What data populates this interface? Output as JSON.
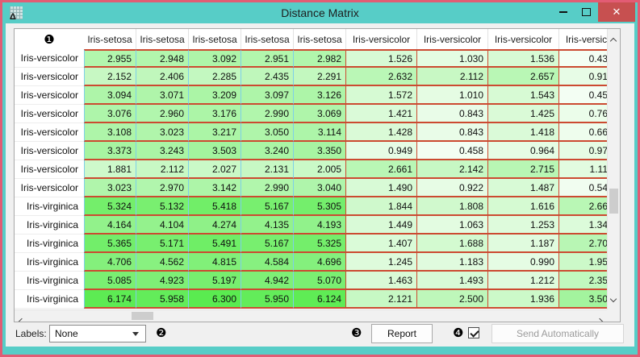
{
  "window": {
    "title": "Distance Matrix",
    "icon_glyph": "Δ",
    "minimize_glyph": "",
    "maximize_glyph": "",
    "close_glyph": "✕",
    "titlebar_color": "#57cdc7",
    "frame_color": "#e25c74",
    "close_button_color": "#c75050"
  },
  "table": {
    "corner_badge": "❶",
    "columns": [
      "Iris-setosa",
      "Iris-setosa",
      "Iris-setosa",
      "Iris-setosa",
      "Iris-setosa",
      "Iris-versicolor",
      "Iris-versicolor",
      "Iris-versicolor",
      "Iris-versicolor"
    ],
    "rows": [
      {
        "label": "Iris-versicolor",
        "values": [
          "2.955",
          "2.948",
          "3.092",
          "2.951",
          "2.982",
          "1.526",
          "1.030",
          "1.536",
          "0.43"
        ]
      },
      {
        "label": "Iris-versicolor",
        "values": [
          "2.152",
          "2.406",
          "2.285",
          "2.435",
          "2.291",
          "2.632",
          "2.112",
          "2.657",
          "0.91"
        ]
      },
      {
        "label": "Iris-versicolor",
        "values": [
          "3.094",
          "3.071",
          "3.209",
          "3.097",
          "3.126",
          "1.572",
          "1.010",
          "1.543",
          "0.45"
        ]
      },
      {
        "label": "Iris-versicolor",
        "values": [
          "3.076",
          "2.960",
          "3.176",
          "2.990",
          "3.069",
          "1.421",
          "0.843",
          "1.425",
          "0.76"
        ]
      },
      {
        "label": "Iris-versicolor",
        "values": [
          "3.108",
          "3.023",
          "3.217",
          "3.050",
          "3.114",
          "1.428",
          "0.843",
          "1.418",
          "0.66"
        ]
      },
      {
        "label": "Iris-versicolor",
        "values": [
          "3.373",
          "3.243",
          "3.503",
          "3.240",
          "3.350",
          "0.949",
          "0.458",
          "0.964",
          "0.97"
        ]
      },
      {
        "label": "Iris-versicolor",
        "values": [
          "1.881",
          "2.112",
          "2.027",
          "2.131",
          "2.005",
          "2.661",
          "2.142",
          "2.715",
          "1.11"
        ]
      },
      {
        "label": "Iris-versicolor",
        "values": [
          "3.023",
          "2.970",
          "3.142",
          "2.990",
          "3.040",
          "1.490",
          "0.922",
          "1.487",
          "0.54"
        ]
      },
      {
        "label": "Iris-virginica",
        "values": [
          "5.324",
          "5.132",
          "5.418",
          "5.167",
          "5.305",
          "1.844",
          "1.808",
          "1.616",
          "2.66"
        ]
      },
      {
        "label": "Iris-virginica",
        "values": [
          "4.164",
          "4.104",
          "4.274",
          "4.135",
          "4.193",
          "1.449",
          "1.063",
          "1.253",
          "1.34"
        ]
      },
      {
        "label": "Iris-virginica",
        "values": [
          "5.365",
          "5.171",
          "5.491",
          "5.167",
          "5.325",
          "1.407",
          "1.688",
          "1.187",
          "2.70"
        ]
      },
      {
        "label": "Iris-virginica",
        "values": [
          "4.706",
          "4.562",
          "4.815",
          "4.584",
          "4.696",
          "1.245",
          "1.183",
          "0.990",
          "1.95"
        ]
      },
      {
        "label": "Iris-virginica",
        "values": [
          "5.085",
          "4.923",
          "5.197",
          "4.942",
          "5.070",
          "1.463",
          "1.493",
          "1.212",
          "2.35"
        ]
      },
      {
        "label": "Iris-virginica",
        "values": [
          "6.174",
          "5.958",
          "6.300",
          "5.950",
          "6.124",
          "2.121",
          "2.500",
          "1.936",
          "3.50"
        ]
      }
    ],
    "scale": {
      "max": 6.3,
      "high_rgb": [
        90,
        235,
        80
      ],
      "low_color": "#ffffff",
      "h_border": "#cc4a31",
      "v_border": "#7ecfe9"
    }
  },
  "controls": {
    "labels_label": "Labels:",
    "labels_value": "None",
    "badge_labels": "❷",
    "badge_report": "❸",
    "badge_send": "❹",
    "report_label": "Report",
    "send_label": "Send Automatically",
    "send_checkbox_checked": true
  }
}
